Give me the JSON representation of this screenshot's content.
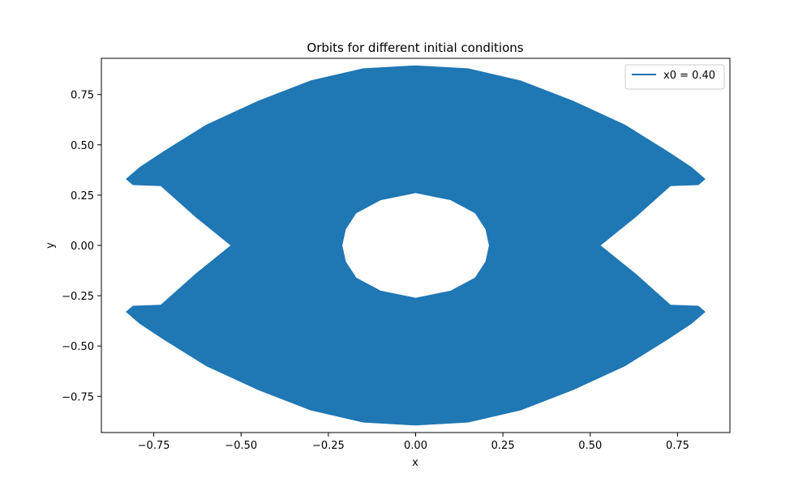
{
  "chart_data": {
    "type": "line",
    "title": "Orbits for different initial conditions",
    "xlabel": "x",
    "ylabel": "y",
    "xlim": [
      -0.9,
      0.9
    ],
    "ylim": [
      -0.93,
      0.93
    ],
    "xticks": [
      -0.75,
      -0.5,
      -0.25,
      0.0,
      0.25,
      0.5,
      0.75
    ],
    "xtick_labels": [
      "−0.75",
      "−0.50",
      "−0.25",
      "0.00",
      "0.25",
      "0.50",
      "0.75"
    ],
    "yticks": [
      -0.75,
      -0.5,
      -0.25,
      0.0,
      0.25,
      0.5,
      0.75
    ],
    "ytick_labels": [
      "−0.75",
      "−0.50",
      "−0.25",
      "0.00",
      "0.25",
      "0.50",
      "0.75"
    ],
    "grid": false,
    "legend_position": "top-right",
    "series": [
      {
        "name": "x0 = 0.40",
        "color": "#1f77b4",
        "outer_boundary": [
          [
            0.0,
            0.895
          ],
          [
            0.15,
            0.88
          ],
          [
            0.3,
            0.82
          ],
          [
            0.45,
            0.72
          ],
          [
            0.6,
            0.6
          ],
          [
            0.72,
            0.47
          ],
          [
            0.79,
            0.39
          ],
          [
            0.83,
            0.33
          ],
          [
            0.81,
            0.3
          ],
          [
            0.73,
            0.295
          ],
          [
            0.63,
            0.14
          ],
          [
            0.53,
            0.0
          ],
          [
            0.63,
            -0.14
          ],
          [
            0.73,
            -0.295
          ],
          [
            0.81,
            -0.3
          ],
          [
            0.83,
            -0.33
          ],
          [
            0.79,
            -0.39
          ],
          [
            0.72,
            -0.47
          ],
          [
            0.6,
            -0.6
          ],
          [
            0.45,
            -0.72
          ],
          [
            0.3,
            -0.82
          ],
          [
            0.15,
            -0.88
          ],
          [
            0.0,
            -0.895
          ],
          [
            -0.15,
            -0.88
          ],
          [
            -0.3,
            -0.82
          ],
          [
            -0.45,
            -0.72
          ],
          [
            -0.6,
            -0.6
          ],
          [
            -0.72,
            -0.47
          ],
          [
            -0.79,
            -0.39
          ],
          [
            -0.83,
            -0.33
          ],
          [
            -0.81,
            -0.3
          ],
          [
            -0.73,
            -0.295
          ],
          [
            -0.63,
            -0.14
          ],
          [
            -0.53,
            0.0
          ],
          [
            -0.63,
            0.14
          ],
          [
            -0.73,
            0.295
          ],
          [
            -0.81,
            0.3
          ],
          [
            -0.83,
            0.33
          ],
          [
            -0.79,
            0.39
          ],
          [
            -0.72,
            0.47
          ],
          [
            -0.6,
            0.6
          ],
          [
            -0.45,
            0.72
          ],
          [
            -0.3,
            0.82
          ],
          [
            -0.15,
            0.88
          ]
        ],
        "inner_hole": [
          [
            0.0,
            0.26
          ],
          [
            0.1,
            0.225
          ],
          [
            0.17,
            0.16
          ],
          [
            0.2,
            0.08
          ],
          [
            0.21,
            0.0
          ],
          [
            0.2,
            -0.08
          ],
          [
            0.17,
            -0.16
          ],
          [
            0.1,
            -0.225
          ],
          [
            0.0,
            -0.26
          ],
          [
            -0.1,
            -0.225
          ],
          [
            -0.17,
            -0.16
          ],
          [
            -0.2,
            -0.08
          ],
          [
            -0.21,
            0.0
          ],
          [
            -0.2,
            0.08
          ],
          [
            -0.17,
            0.16
          ],
          [
            -0.1,
            0.225
          ]
        ]
      }
    ]
  }
}
